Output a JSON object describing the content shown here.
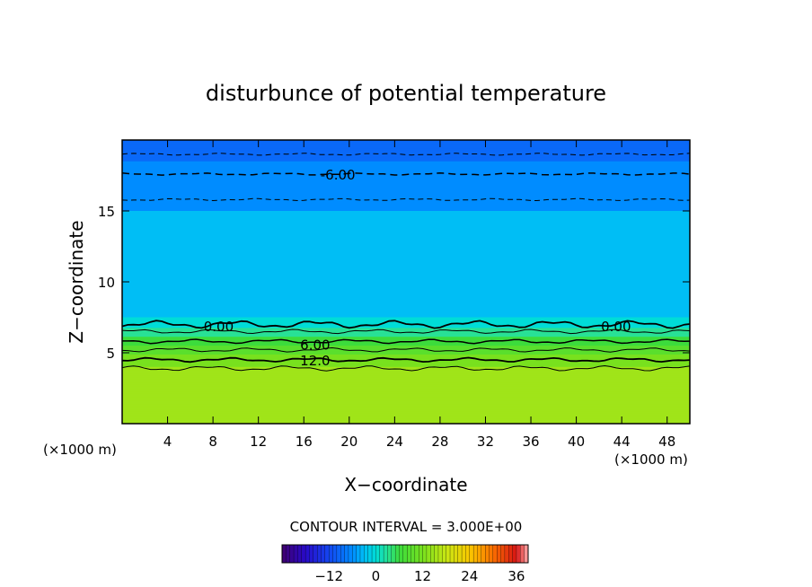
{
  "chart_data": {
    "type": "heatmap",
    "title": "disturbunce of potential temperature",
    "xlabel": "X−coordinate",
    "ylabel": "Z−coordinate",
    "x_unit_left": "(×1000 m)",
    "x_unit_right": "(×1000 m)",
    "xlim": [
      0,
      50
    ],
    "ylim": [
      0,
      20
    ],
    "x_ticks": [
      4,
      8,
      12,
      16,
      20,
      24,
      28,
      32,
      36,
      40,
      44,
      48
    ],
    "y_ticks": [
      5,
      10,
      15
    ],
    "contour_interval_text": "CONTOUR INTERVAL = 3.000E+00",
    "contour_interval": 3.0,
    "contour_labels": [
      {
        "text": "-6.00",
        "x": 19.0,
        "z": 17.6
      },
      {
        "text": "0.00",
        "x": 8.5,
        "z": 6.9
      },
      {
        "text": "0.00",
        "x": 43.5,
        "z": 6.9
      },
      {
        "text": "6.00",
        "x": 17.0,
        "z": 5.6
      },
      {
        "text": "12.0",
        "x": 17.0,
        "z": 4.5
      }
    ],
    "profile": [
      {
        "z": 20.0,
        "value": -9.5
      },
      {
        "z": 19.0,
        "value": -8.5
      },
      {
        "z": 17.6,
        "value": -6.0
      },
      {
        "z": 16.0,
        "value": -5.0
      },
      {
        "z": 13.0,
        "value": -3.5
      },
      {
        "z": 9.0,
        "value": -2.5
      },
      {
        "z": 7.5,
        "value": -1.5
      },
      {
        "z": 7.0,
        "value": 0.0
      },
      {
        "z": 6.5,
        "value": 3.0
      },
      {
        "z": 5.8,
        "value": 6.0
      },
      {
        "z": 5.2,
        "value": 9.0
      },
      {
        "z": 4.5,
        "value": 12.0
      },
      {
        "z": 3.8,
        "value": 14.0
      },
      {
        "z": 0.0,
        "value": 15.0
      }
    ],
    "colorbar": {
      "min": -24,
      "max": 39,
      "ticks": [
        -12,
        0,
        12,
        24,
        36
      ]
    }
  }
}
